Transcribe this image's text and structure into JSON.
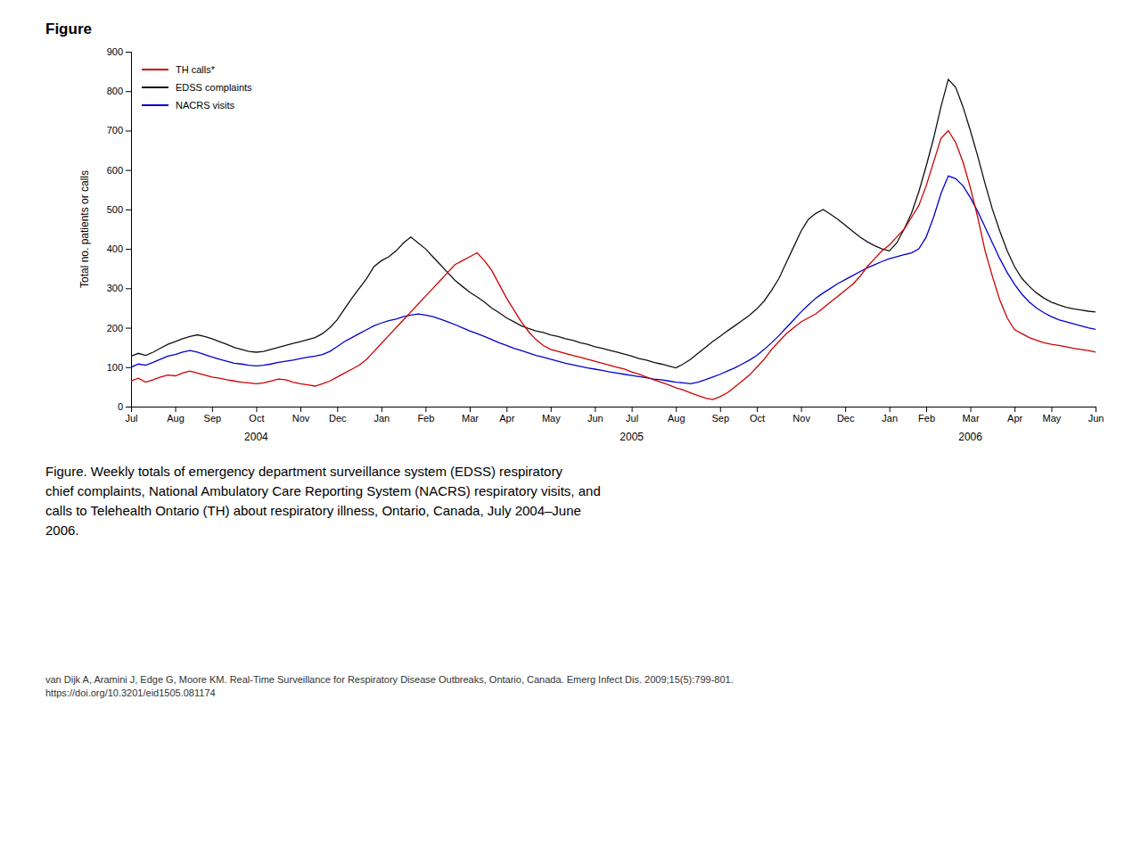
{
  "chart_data": {
    "type": "line",
    "title": "Figure",
    "ylabel": "Total no. patients or calls",
    "ylim": [
      0,
      900
    ],
    "yticks": [
      0,
      100,
      200,
      300,
      400,
      500,
      600,
      700,
      800,
      900
    ],
    "grid": false,
    "legend": "upper left",
    "categories": [
      "Jul",
      null,
      null,
      null,
      null,
      null,
      "Aug",
      null,
      null,
      null,
      null,
      "Sep",
      null,
      null,
      null,
      null,
      null,
      "Oct",
      null,
      null,
      null,
      null,
      null,
      "Nov",
      null,
      null,
      null,
      null,
      "Dec",
      null,
      null,
      null,
      null,
      null,
      "Jan",
      null,
      null,
      null,
      null,
      null,
      "Feb",
      null,
      null,
      null,
      null,
      null,
      "Mar",
      null,
      null,
      null,
      null,
      "Apr",
      null,
      null,
      null,
      null,
      null,
      "May",
      null,
      null,
      null,
      null,
      null,
      "Jun",
      null,
      null,
      null,
      null,
      "Jul",
      null,
      null,
      null,
      null,
      null,
      "Aug",
      null,
      null,
      null,
      null,
      null,
      "Sep",
      null,
      null,
      null,
      null,
      "Oct",
      null,
      null,
      null,
      null,
      null,
      "Nov",
      null,
      null,
      null,
      null,
      null,
      "Dec",
      null,
      null,
      null,
      null,
      null,
      "Jan",
      null,
      null,
      null,
      null,
      "Feb",
      null,
      null,
      null,
      null,
      null,
      "Mar",
      null,
      null,
      null,
      null,
      null,
      "Apr",
      null,
      null,
      null,
      null,
      "May",
      null,
      null,
      null,
      null,
      null,
      "Jun"
    ],
    "annotations": [
      {
        "text": "2004",
        "x": 17
      },
      {
        "text": "2005",
        "x": 68
      },
      {
        "text": "2006",
        "x": 114
      }
    ],
    "caption": [
      "Figure. Weekly totals of emergency department surveillance system (EDSS) respiratory",
      "chief complaints, National Ambulatory Care Reporting System (NACRS) respiratory visits, and",
      "calls to Telehealth Ontario (TH) about respiratory illness, Ontario, Canada, July 2004–June",
      "2006."
    ],
    "citation": [
      "van Dijk A, Aramini J, Edge G, Moore KM. Real-Time Surveillance for Respiratory Disease Outbreaks, Ontario, Canada. Emerg Infect Dis. 2009;15(5):799-801.",
      "https://doi.org/10.3201/eid1505.081174"
    ],
    "series": [
      {
        "name": "TH calls*",
        "color": "#cc0000",
        "values": [
          65,
          72,
          62,
          68,
          75,
          80,
          78,
          85,
          90,
          85,
          80,
          75,
          72,
          68,
          65,
          62,
          60,
          58,
          60,
          65,
          70,
          68,
          62,
          58,
          55,
          52,
          58,
          65,
          75,
          85,
          95,
          105,
          120,
          140,
          160,
          180,
          200,
          220,
          240,
          260,
          280,
          300,
          320,
          340,
          360,
          370,
          380,
          390,
          370,
          345,
          310,
          275,
          245,
          215,
          190,
          170,
          155,
          145,
          140,
          135,
          130,
          125,
          120,
          115,
          110,
          105,
          100,
          95,
          88,
          82,
          75,
          68,
          62,
          55,
          48,
          42,
          35,
          28,
          22,
          18,
          25,
          35,
          50,
          65,
          80,
          100,
          120,
          145,
          165,
          185,
          200,
          215,
          225,
          235,
          250,
          265,
          280,
          295,
          310,
          330,
          355,
          375,
          395,
          410,
          430,
          450,
          480,
          510,
          560,
          620,
          680,
          700,
          670,
          620,
          555,
          480,
          395,
          330,
          270,
          225,
          195,
          185,
          175,
          168,
          162,
          158,
          155,
          152,
          148,
          145,
          142,
          138
        ]
      },
      {
        "name": "EDSS complaints",
        "color": "#111111",
        "values": [
          128,
          135,
          130,
          138,
          148,
          158,
          165,
          172,
          178,
          182,
          178,
          172,
          165,
          158,
          150,
          145,
          140,
          138,
          140,
          145,
          150,
          155,
          160,
          165,
          170,
          175,
          185,
          200,
          220,
          248,
          275,
          300,
          325,
          355,
          370,
          380,
          395,
          415,
          430,
          415,
          400,
          380,
          360,
          340,
          320,
          305,
          290,
          278,
          265,
          250,
          238,
          225,
          215,
          205,
          198,
          192,
          188,
          182,
          178,
          172,
          168,
          162,
          158,
          152,
          148,
          143,
          138,
          133,
          128,
          122,
          118,
          112,
          108,
          103,
          98,
          108,
          120,
          135,
          150,
          165,
          178,
          192,
          205,
          218,
          232,
          248,
          268,
          295,
          325,
          365,
          405,
          445,
          475,
          490,
          500,
          488,
          475,
          460,
          445,
          430,
          418,
          408,
          400,
          395,
          415,
          450,
          490,
          545,
          610,
          680,
          760,
          830,
          810,
          760,
          700,
          635,
          565,
          500,
          445,
          395,
          355,
          325,
          305,
          288,
          275,
          265,
          258,
          252,
          248,
          245,
          242,
          240
        ]
      },
      {
        "name": "NACRS visits",
        "color": "#0000cc",
        "values": [
          100,
          108,
          105,
          112,
          120,
          128,
          132,
          138,
          142,
          138,
          132,
          126,
          120,
          115,
          110,
          108,
          105,
          103,
          105,
          108,
          112,
          115,
          118,
          122,
          125,
          128,
          132,
          140,
          152,
          165,
          175,
          185,
          195,
          205,
          212,
          218,
          222,
          228,
          232,
          235,
          232,
          228,
          222,
          215,
          208,
          200,
          192,
          185,
          178,
          170,
          162,
          155,
          148,
          142,
          136,
          130,
          125,
          120,
          115,
          110,
          106,
          102,
          98,
          95,
          92,
          88,
          85,
          82,
          79,
          76,
          73,
          70,
          68,
          65,
          62,
          60,
          58,
          62,
          68,
          75,
          82,
          90,
          98,
          108,
          118,
          130,
          145,
          162,
          180,
          200,
          220,
          240,
          258,
          275,
          288,
          300,
          312,
          322,
          332,
          342,
          352,
          360,
          368,
          375,
          380,
          385,
          390,
          400,
          430,
          480,
          540,
          585,
          578,
          560,
          530,
          495,
          455,
          415,
          375,
          340,
          310,
          285,
          265,
          250,
          238,
          228,
          220,
          215,
          210,
          205,
          200,
          196
        ]
      }
    ]
  }
}
